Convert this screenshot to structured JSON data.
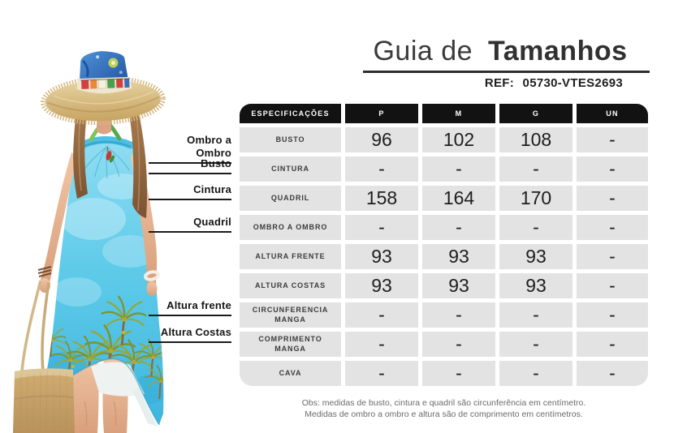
{
  "header": {
    "title_light": "Guia de",
    "title_bold": "Tamanhos",
    "ref_label": "REF:",
    "ref_value": "05730-VTES2693"
  },
  "measurements": [
    {
      "label": "Ombro a Ombro"
    },
    {
      "label": "Busto"
    },
    {
      "label": "Cintura"
    },
    {
      "label": "Quadril"
    },
    {
      "label": "Altura frente"
    },
    {
      "label": "Altura Costas"
    }
  ],
  "size_table": {
    "columns": [
      "ESPECIFICAÇÕES",
      "P",
      "M",
      "G",
      "UN"
    ],
    "rows": [
      {
        "label": "BUSTO",
        "values": [
          "96",
          "102",
          "108",
          "-"
        ]
      },
      {
        "label": "CINTURA",
        "values": [
          "-",
          "-",
          "-",
          "-"
        ]
      },
      {
        "label": "QUADRIL",
        "values": [
          "158",
          "164",
          "170",
          "-"
        ]
      },
      {
        "label": "OMBRO A OMBRO",
        "values": [
          "-",
          "-",
          "-",
          "-"
        ]
      },
      {
        "label": "ALTURA FRENTE",
        "values": [
          "93",
          "93",
          "93",
          "-"
        ]
      },
      {
        "label": "ALTURA COSTAS",
        "values": [
          "93",
          "93",
          "93",
          "-"
        ]
      },
      {
        "label": "CIRCUNFERENCIA MANGA",
        "values": [
          "-",
          "-",
          "-",
          "-"
        ]
      },
      {
        "label": "COMPRIMENTO MANGA",
        "values": [
          "-",
          "-",
          "-",
          "-"
        ]
      },
      {
        "label": "CAVA",
        "values": [
          "-",
          "-",
          "-",
          "-"
        ]
      }
    ]
  },
  "footnote": {
    "line1": "Obs: medidas de busto, cintura e quadril são circunferência em centímetro.",
    "line2": "Medidas de ombro a ombro e altura são de comprimento em centímetros."
  },
  "colors": {
    "header_black": "#121212",
    "cell_gray": "#e3e3e3",
    "dress_blue": "#4cc2e6",
    "straw": "#d9bc85",
    "hat_crown_blue": "#2f6cc0"
  }
}
